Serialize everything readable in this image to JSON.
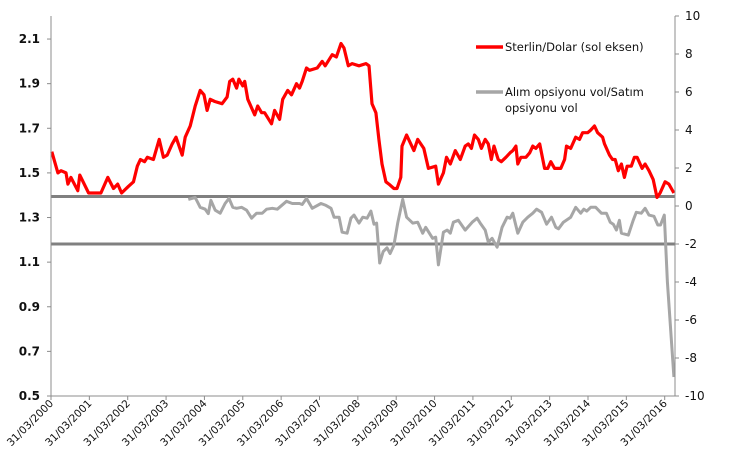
{
  "chart_data": {
    "type": "line",
    "title": "",
    "x_ticks": [
      "31/03/2000",
      "31/03/2001",
      "31/03/2002",
      "31/03/2003",
      "31/03/2004",
      "31/03/2005",
      "31/03/2006",
      "31/03/2007",
      "31/03/2008",
      "31/03/2009",
      "31/03/2010",
      "31/03/2011",
      "31/03/2012",
      "31/03/2013",
      "31/03/2014",
      "31/03/2015",
      "31/03/2016"
    ],
    "y_left": {
      "min": 0.5,
      "max": 2.2,
      "ticks": [
        "0.5",
        "0.7",
        "0.9",
        "1.1",
        "1.3",
        "1.5",
        "1.7",
        "1.9",
        "2.1"
      ]
    },
    "y_right": {
      "min": -10,
      "max": 10,
      "ticks": [
        "-10",
        "-8",
        "-6",
        "-4",
        "-2",
        "0",
        "2",
        "4",
        "6",
        "8",
        "10"
      ]
    },
    "grid": false,
    "legend_position": "top-right",
    "reference_lines_right_axis": [
      0.5,
      -2
    ],
    "reference_line_color": "#808080",
    "series": [
      {
        "name": "Sterlin/Dolar (sol eksen)",
        "axis": "left",
        "color": "#ff0000",
        "x": [
          2000.02,
          2000.18,
          2000.26,
          2000.39,
          2000.44,
          2000.52,
          2000.7,
          2000.75,
          2000.98,
          2001.3,
          2001.48,
          2001.63,
          2001.74,
          2001.84,
          2002.02,
          2002.15,
          2002.25,
          2002.33,
          2002.44,
          2002.51,
          2002.67,
          2002.82,
          2002.93,
          2003.03,
          2003.16,
          2003.26,
          2003.42,
          2003.5,
          2003.63,
          2003.76,
          2003.89,
          2003.99,
          2004.07,
          2004.15,
          2004.27,
          2004.46,
          2004.59,
          2004.66,
          2004.74,
          2004.84,
          2004.9,
          2005.0,
          2005.05,
          2005.13,
          2005.31,
          2005.39,
          2005.49,
          2005.57,
          2005.75,
          2005.83,
          2005.96,
          2006.04,
          2006.17,
          2006.27,
          2006.4,
          2006.48,
          2006.55,
          2006.66,
          2006.74,
          2006.94,
          2007.07,
          2007.15,
          2007.33,
          2007.44,
          2007.56,
          2007.64,
          2007.75,
          2007.85,
          2008.03,
          2008.21,
          2008.29,
          2008.37,
          2008.47,
          2008.55,
          2008.63,
          2008.73,
          2008.81,
          2008.94,
          2009.02,
          2009.12,
          2009.15,
          2009.27,
          2009.46,
          2009.56,
          2009.72,
          2009.84,
          2010.03,
          2010.1,
          2010.23,
          2010.31,
          2010.41,
          2010.54,
          2010.67,
          2010.8,
          2010.88,
          2010.96,
          2011.04,
          2011.14,
          2011.22,
          2011.32,
          2011.4,
          2011.48,
          2011.55,
          2011.66,
          2011.74,
          2011.86,
          2011.97,
          2012.04,
          2012.12,
          2012.17,
          2012.25,
          2012.38,
          2012.48,
          2012.56,
          2012.64,
          2012.74,
          2012.87,
          2012.95,
          2013.03,
          2013.13,
          2013.29,
          2013.39,
          2013.44,
          2013.55,
          2013.68,
          2013.78,
          2013.86,
          2013.99,
          2014.06,
          2014.17,
          2014.25,
          2014.38,
          2014.43,
          2014.56,
          2014.64,
          2014.71,
          2014.79,
          2014.87,
          2014.95,
          2015.02,
          2015.13,
          2015.21,
          2015.28,
          2015.41,
          2015.49,
          2015.59,
          2015.7,
          2015.8,
          2015.88,
          2016.01,
          2016.11,
          2016.24
        ],
        "y": [
          1.595,
          1.5,
          1.51,
          1.5,
          1.45,
          1.48,
          1.42,
          1.49,
          1.41,
          1.41,
          1.48,
          1.43,
          1.45,
          1.41,
          1.44,
          1.46,
          1.53,
          1.56,
          1.55,
          1.57,
          1.56,
          1.65,
          1.57,
          1.58,
          1.63,
          1.66,
          1.58,
          1.66,
          1.71,
          1.8,
          1.87,
          1.85,
          1.78,
          1.83,
          1.82,
          1.81,
          1.84,
          1.91,
          1.92,
          1.88,
          1.92,
          1.89,
          1.91,
          1.83,
          1.76,
          1.8,
          1.77,
          1.77,
          1.72,
          1.78,
          1.74,
          1.83,
          1.87,
          1.85,
          1.9,
          1.88,
          1.91,
          1.97,
          1.96,
          1.97,
          2.0,
          1.98,
          2.03,
          2.02,
          2.08,
          2.06,
          1.98,
          1.99,
          1.98,
          1.99,
          1.98,
          1.81,
          1.77,
          1.65,
          1.54,
          1.46,
          1.45,
          1.43,
          1.43,
          1.48,
          1.62,
          1.67,
          1.6,
          1.65,
          1.61,
          1.52,
          1.53,
          1.45,
          1.5,
          1.57,
          1.54,
          1.6,
          1.56,
          1.62,
          1.63,
          1.61,
          1.67,
          1.65,
          1.61,
          1.65,
          1.63,
          1.56,
          1.62,
          1.56,
          1.55,
          1.57,
          1.59,
          1.6,
          1.62,
          1.54,
          1.57,
          1.57,
          1.59,
          1.62,
          1.61,
          1.63,
          1.52,
          1.52,
          1.55,
          1.52,
          1.52,
          1.56,
          1.62,
          1.61,
          1.66,
          1.65,
          1.68,
          1.68,
          1.69,
          1.71,
          1.68,
          1.66,
          1.63,
          1.58,
          1.56,
          1.56,
          1.51,
          1.54,
          1.48,
          1.53,
          1.53,
          1.57,
          1.57,
          1.52,
          1.54,
          1.51,
          1.47,
          1.39,
          1.41,
          1.46,
          1.45,
          1.41
        ]
      },
      {
        "name": "Alım opsiyonu vol/Satım opsiyonu vol",
        "axis": "right",
        "color": "#a6a6a6",
        "x": [
          2003.58,
          2003.76,
          2003.89,
          2004.02,
          2004.1,
          2004.17,
          2004.28,
          2004.41,
          2004.54,
          2004.64,
          2004.74,
          2004.84,
          2004.97,
          2005.1,
          2005.23,
          2005.36,
          2005.51,
          2005.62,
          2005.77,
          2005.9,
          2006.14,
          2006.29,
          2006.48,
          2006.55,
          2006.66,
          2006.81,
          2007.04,
          2007.17,
          2007.3,
          2007.38,
          2007.51,
          2007.59,
          2007.72,
          2007.82,
          2007.9,
          2008.03,
          2008.13,
          2008.24,
          2008.34,
          2008.42,
          2008.49,
          2008.57,
          2008.66,
          2008.76,
          2008.84,
          2008.94,
          2009.04,
          2009.17,
          2009.27,
          2009.43,
          2009.56,
          2009.69,
          2009.77,
          2009.95,
          2010.03,
          2010.1,
          2010.23,
          2010.33,
          2010.41,
          2010.49,
          2010.62,
          2010.8,
          2010.98,
          2011.11,
          2011.19,
          2011.32,
          2011.4,
          2011.5,
          2011.63,
          2011.76,
          2011.89,
          2011.97,
          2012.04,
          2012.17,
          2012.3,
          2012.43,
          2012.56,
          2012.66,
          2012.79,
          2012.92,
          2013.05,
          2013.16,
          2013.23,
          2013.36,
          2013.55,
          2013.68,
          2013.81,
          2013.89,
          2013.97,
          2014.07,
          2014.2,
          2014.35,
          2014.48,
          2014.58,
          2014.66,
          2014.74,
          2014.82,
          2014.87,
          2015.05,
          2015.18,
          2015.26,
          2015.39,
          2015.49,
          2015.59,
          2015.72,
          2015.82,
          2015.89,
          2015.99,
          2016.07,
          2016.24
        ],
        "y": [
          0.35,
          0.45,
          -0.07,
          -0.17,
          -0.4,
          0.3,
          -0.22,
          -0.38,
          0.13,
          0.4,
          -0.07,
          -0.12,
          -0.07,
          -0.22,
          -0.64,
          -0.38,
          -0.38,
          -0.17,
          -0.12,
          -0.17,
          0.25,
          0.13,
          0.13,
          0.08,
          0.4,
          -0.12,
          0.13,
          0.03,
          -0.12,
          -0.59,
          -0.59,
          -1.38,
          -1.43,
          -0.64,
          -0.48,
          -0.9,
          -0.59,
          -0.64,
          -0.27,
          -0.96,
          -0.9,
          -3.0,
          -2.4,
          -2.2,
          -2.5,
          -2.07,
          -0.9,
          0.35,
          -0.59,
          -0.9,
          -0.85,
          -1.43,
          -1.12,
          -1.7,
          -1.64,
          -3.1,
          -1.38,
          -1.27,
          -1.43,
          -0.85,
          -0.75,
          -1.27,
          -0.85,
          -0.64,
          -0.9,
          -1.27,
          -1.9,
          -1.7,
          -2.17,
          -1.12,
          -0.59,
          -0.64,
          -0.38,
          -1.43,
          -0.85,
          -0.59,
          -0.38,
          -0.17,
          -0.33,
          -0.96,
          -0.59,
          -1.12,
          -1.2,
          -0.85,
          -0.59,
          -0.07,
          -0.38,
          -0.17,
          -0.27,
          -0.07,
          -0.07,
          -0.38,
          -0.38,
          -0.85,
          -0.96,
          -1.27,
          -0.75,
          -1.43,
          -1.53,
          -0.75,
          -0.33,
          -0.38,
          -0.12,
          -0.48,
          -0.54,
          -1.0,
          -1.0,
          -0.48,
          -4.0,
          -9.0
        ]
      }
    ]
  }
}
